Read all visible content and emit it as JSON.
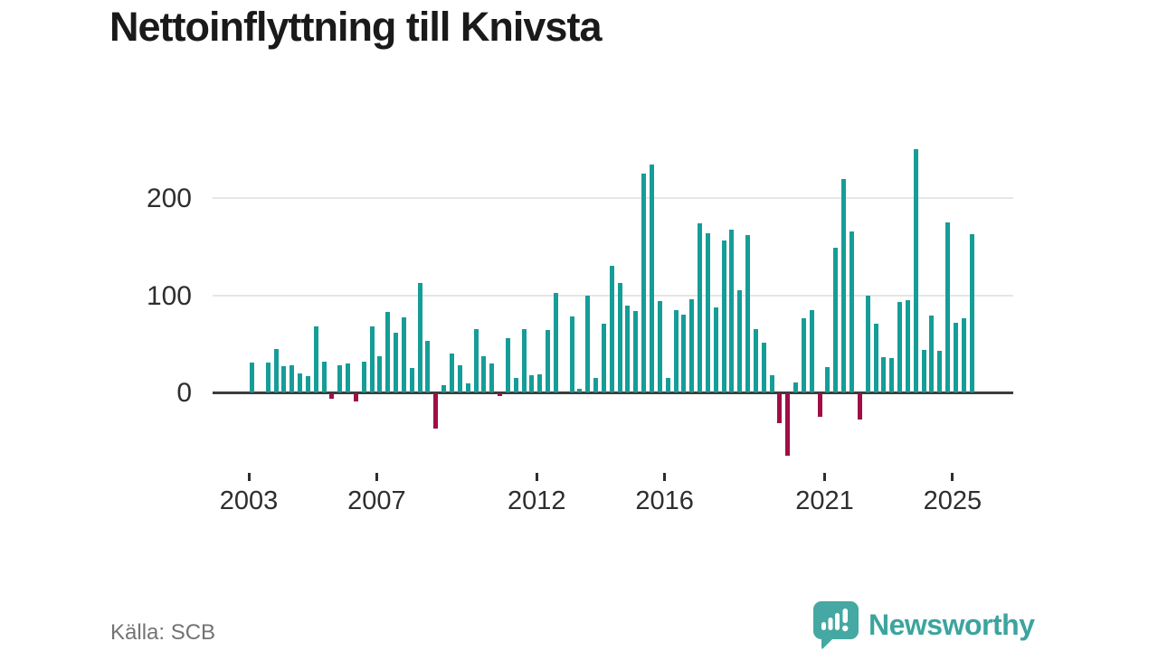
{
  "title": "Nettoinflyttning till Knivsta",
  "source": "Källa: SCB",
  "brand": {
    "name": "Newsworthy",
    "logo_icon": "speech-bubble-bar-chart-exclamation",
    "color": "#3ca49e"
  },
  "colors": {
    "positive_bar": "#169d97",
    "negative_bar": "#a00e45",
    "axis": "#3c3c3c",
    "gridline": "#e6e6e6",
    "title_text": "#1a1a1a",
    "tick_text": "#2e2e2e",
    "source_text": "#737373"
  },
  "chart_data": {
    "type": "bar",
    "title": "Nettoinflyttning till Knivsta",
    "xlabel": "",
    "ylabel": "",
    "y_ticks": [
      0,
      100,
      200
    ],
    "ylim": [
      -80,
      260
    ],
    "x_tick_years": [
      "2003",
      "2007",
      "2012",
      "2016",
      "2021",
      "2025"
    ],
    "grid": "horizontal",
    "legend": "none",
    "bar_colors": {
      "positive": "#169d97",
      "negative": "#a00e45"
    },
    "quarters": [
      "2003Q1",
      "2003Q2",
      "2003Q3",
      "2003Q4",
      "2004Q1",
      "2004Q2",
      "2004Q3",
      "2004Q4",
      "2005Q1",
      "2005Q2",
      "2005Q3",
      "2005Q4",
      "2006Q1",
      "2006Q2",
      "2006Q3",
      "2006Q4",
      "2007Q1",
      "2007Q2",
      "2007Q3",
      "2007Q4",
      "2008Q1",
      "2008Q2",
      "2008Q3",
      "2008Q4",
      "2009Q1",
      "2009Q2",
      "2009Q3",
      "2009Q4",
      "2010Q1",
      "2010Q2",
      "2010Q3",
      "2010Q4",
      "2011Q1",
      "2011Q2",
      "2011Q3",
      "2011Q4",
      "2012Q1",
      "2012Q2",
      "2012Q3",
      "2012Q4",
      "2013Q1",
      "2013Q2",
      "2013Q3",
      "2013Q4",
      "2014Q1",
      "2014Q2",
      "2014Q3",
      "2014Q4",
      "2015Q1",
      "2015Q2",
      "2015Q3",
      "2015Q4",
      "2016Q1",
      "2016Q2",
      "2016Q3",
      "2016Q4",
      "2017Q1",
      "2017Q2",
      "2017Q3",
      "2017Q4",
      "2018Q1",
      "2018Q2",
      "2018Q3",
      "2018Q4",
      "2019Q1",
      "2019Q2",
      "2019Q3",
      "2019Q4",
      "2020Q1",
      "2020Q2",
      "2020Q3",
      "2020Q4",
      "2021Q1",
      "2021Q2",
      "2021Q3",
      "2021Q4",
      "2022Q1",
      "2022Q2",
      "2022Q3",
      "2022Q4",
      "2023Q1",
      "2023Q2",
      "2023Q3",
      "2023Q4",
      "2024Q1",
      "2024Q2",
      "2024Q3",
      "2024Q4",
      "2025Q1",
      "2025Q2",
      "2025Q3"
    ],
    "values": [
      31,
      0,
      31,
      45,
      27,
      28,
      20,
      17,
      68,
      32,
      -6,
      28,
      30,
      -8,
      32,
      68,
      37,
      83,
      61,
      77,
      25,
      113,
      53,
      -36,
      7,
      40,
      28,
      9,
      65,
      37,
      30,
      -3,
      56,
      15,
      65,
      18,
      19,
      64,
      102,
      0,
      78,
      4,
      100,
      15,
      71,
      130,
      113,
      89,
      84,
      225,
      234,
      94,
      15,
      85,
      80,
      96,
      174,
      164,
      87,
      156,
      167,
      105,
      162,
      65,
      51,
      18,
      -31,
      -64,
      10,
      76,
      85,
      -24,
      26,
      149,
      220,
      166,
      -27,
      100,
      71,
      36,
      35,
      93,
      95,
      250,
      44,
      79,
      43,
      175,
      72,
      76,
      163
    ]
  }
}
